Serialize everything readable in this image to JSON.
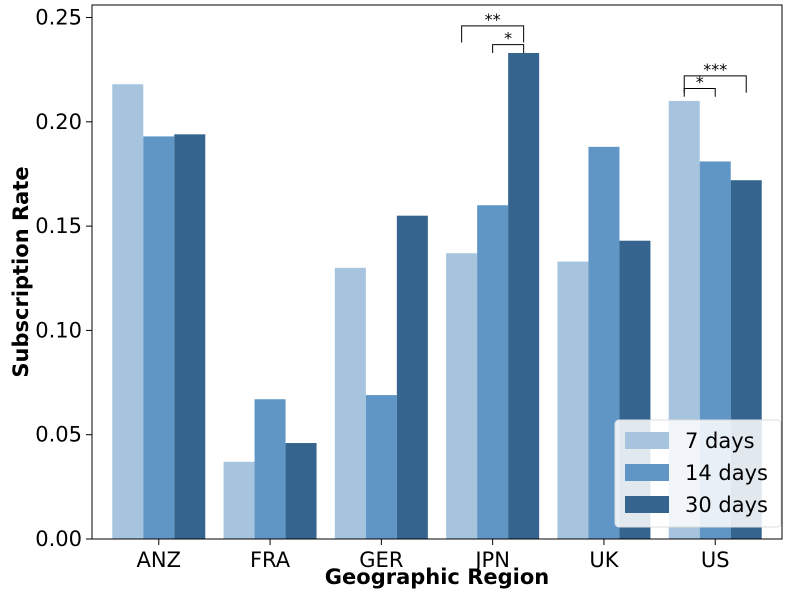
{
  "chart_data": {
    "type": "bar",
    "xlabel": "Geographic Region",
    "ylabel": "Subscription Rate",
    "categories": [
      "ANZ",
      "FRA",
      "GER",
      "JPN",
      "UK",
      "US"
    ],
    "ylim": [
      0,
      0.256
    ],
    "yticks": [
      "0.00",
      "0.05",
      "0.10",
      "0.15",
      "0.20",
      "0.25"
    ],
    "ytick_values": [
      0,
      0.05,
      0.1,
      0.15,
      0.2,
      0.25
    ],
    "grid": false,
    "legend_position": "bottom-right",
    "series": [
      {
        "name": "7 days",
        "color": "#a6c4de",
        "values": [
          0.218,
          0.037,
          0.13,
          0.137,
          0.133,
          0.21
        ]
      },
      {
        "name": "14 days",
        "color": "#5f96c6",
        "values": [
          0.193,
          0.067,
          0.069,
          0.16,
          0.188,
          0.181
        ]
      },
      {
        "name": "30 days",
        "color": "#35648e",
        "values": [
          0.194,
          0.046,
          0.155,
          0.233,
          0.143,
          0.172
        ]
      }
    ],
    "annotations": [
      {
        "category": "JPN",
        "from_series": 0,
        "to_series": 2,
        "label": "**",
        "y_bottom": 0.238,
        "y_top": 0.246
      },
      {
        "category": "JPN",
        "from_series": 1,
        "to_series": 2,
        "label": "*",
        "y_bottom": 0.233,
        "y_top": 0.237
      },
      {
        "category": "US",
        "from_series": 0,
        "to_series": 1,
        "label": "*",
        "y_bottom": 0.212,
        "y_top": 0.216
      },
      {
        "category": "US",
        "from_series": 0,
        "to_series": 2,
        "label": "***",
        "y_bottom": 0.214,
        "y_top": 0.222
      }
    ]
  }
}
